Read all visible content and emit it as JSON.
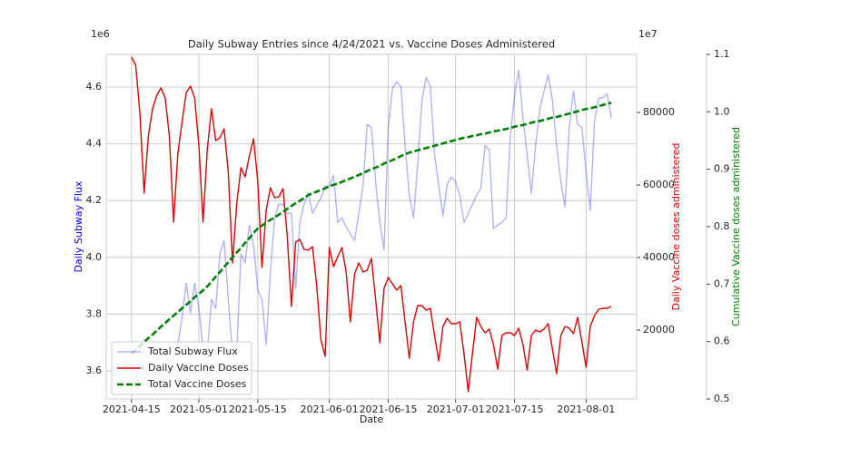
{
  "chart_data": {
    "type": "line",
    "title": "Daily Subway Entries since 4/24/2021 vs. Vaccine Doses Administered",
    "x_label": "Date",
    "y_label": "Daily Subway Flux",
    "y2_label": "Daily Vaccine doses administered",
    "y3_label": "Cumulative Vaccine doses administered",
    "y_offset_label": "1e6",
    "y3_offset_label": "1e7",
    "x": [
      "2021-04-15",
      "2021-04-16",
      "2021-04-17",
      "2021-04-18",
      "2021-04-19",
      "2021-04-20",
      "2021-04-21",
      "2021-04-22",
      "2021-04-23",
      "2021-04-24",
      "2021-04-25",
      "2021-04-26",
      "2021-04-27",
      "2021-04-28",
      "2021-04-29",
      "2021-04-30",
      "2021-05-01",
      "2021-05-02",
      "2021-05-03",
      "2021-05-04",
      "2021-05-05",
      "2021-05-06",
      "2021-05-07",
      "2021-05-08",
      "2021-05-09",
      "2021-05-10",
      "2021-05-11",
      "2021-05-12",
      "2021-05-13",
      "2021-05-14",
      "2021-05-15",
      "2021-05-16",
      "2021-05-17",
      "2021-05-18",
      "2021-05-19",
      "2021-05-20",
      "2021-05-21",
      "2021-05-22",
      "2021-05-23",
      "2021-05-24",
      "2021-05-25",
      "2021-05-26",
      "2021-05-27",
      "2021-05-28",
      "2021-05-29",
      "2021-05-30",
      "2021-05-31",
      "2021-06-01",
      "2021-06-02",
      "2021-06-03",
      "2021-06-04",
      "2021-06-05",
      "2021-06-06",
      "2021-06-07",
      "2021-06-08",
      "2021-06-09",
      "2021-06-10",
      "2021-06-11",
      "2021-06-12",
      "2021-06-13",
      "2021-06-14",
      "2021-06-15",
      "2021-06-16",
      "2021-06-17",
      "2021-06-18",
      "2021-06-19",
      "2021-06-20",
      "2021-06-21",
      "2021-06-22",
      "2021-06-23",
      "2021-06-24",
      "2021-06-25",
      "2021-06-26",
      "2021-06-27",
      "2021-06-28",
      "2021-06-29",
      "2021-06-30",
      "2021-07-01",
      "2021-07-02",
      "2021-07-03",
      "2021-07-04",
      "2021-07-05",
      "2021-07-06",
      "2021-07-07",
      "2021-07-08",
      "2021-07-09",
      "2021-07-10",
      "2021-07-11",
      "2021-07-12",
      "2021-07-13",
      "2021-07-14",
      "2021-07-15",
      "2021-07-16",
      "2021-07-17",
      "2021-07-18",
      "2021-07-19",
      "2021-07-20",
      "2021-07-21",
      "2021-07-22",
      "2021-07-23",
      "2021-07-24",
      "2021-07-25",
      "2021-07-26",
      "2021-07-27",
      "2021-07-28",
      "2021-07-29",
      "2021-07-30",
      "2021-07-31",
      "2021-08-01",
      "2021-08-02",
      "2021-08-03",
      "2021-08-04",
      "2021-08-05",
      "2021-08-06",
      "2021-08-07"
    ],
    "xlim": [
      "2021-04-09",
      "2021-08-13"
    ],
    "xticks": [
      "2021-04-15",
      "2021-05-01",
      "2021-05-15",
      "2021-06-01",
      "2021-06-15",
      "2021-07-01",
      "2021-07-15",
      "2021-08-01"
    ],
    "ylim": [
      3.501,
      4.715
    ],
    "yticks": [
      3.6,
      3.8,
      {
        "value": 4,
        "label": "4.0"
      },
      4.2,
      4.4,
      4.6
    ],
    "y2lim": [
      1000,
      96000
    ],
    "y2ticks": [
      20000,
      40000,
      60000,
      80000
    ],
    "y3lim": [
      0.5,
      1.1
    ],
    "y3ticks": [
      0.5,
      0.6,
      0.7,
      0.8,
      0.9,
      {
        "value": 1,
        "label": "1.0"
      },
      1.1
    ],
    "grid": true,
    "legend": "lower left",
    "series": [
      {
        "name": "Total Subway Flux",
        "color": "#0000ff",
        "opacity": 0.3,
        "axis": "y",
        "values": [
          3.654,
          3.677,
          3.693,
          3.661,
          3.645,
          3.629,
          3.645,
          3.677,
          3.661,
          3.629,
          3.645,
          3.693,
          3.788,
          3.909,
          3.804,
          3.909,
          3.82,
          3.677,
          3.661,
          3.852,
          3.82,
          4.012,
          4.059,
          3.852,
          3.661,
          3.661,
          4.012,
          3.98,
          4.114,
          4.043,
          3.884,
          3.852,
          3.693,
          3.948,
          4.139,
          4.187,
          4.187,
          4.155,
          4.155,
          3.89,
          4.123,
          4.187,
          4.228,
          4.155,
          4.184,
          4.209,
          4.251,
          4.251,
          4.289,
          4.123,
          4.139,
          4.107,
          4.082,
          4.059,
          4.155,
          4.251,
          4.468,
          4.458,
          4.267,
          4.123,
          4.027,
          4.458,
          4.595,
          4.618,
          4.602,
          4.394,
          4.219,
          4.139,
          4.331,
          4.554,
          4.634,
          4.602,
          4.362,
          4.251,
          4.145,
          4.257,
          4.283,
          4.267,
          4.219,
          4.123,
          4.155,
          4.187,
          4.219,
          4.244,
          4.394,
          4.378,
          4.101,
          4.114,
          4.123,
          4.139,
          4.426,
          4.57,
          4.659,
          4.49,
          4.362,
          4.225,
          4.394,
          4.522,
          4.586,
          4.643,
          4.554,
          4.394,
          4.267,
          4.177,
          4.458,
          4.586,
          4.468,
          4.458,
          4.299,
          4.165,
          4.48,
          4.56,
          4.563,
          4.576,
          4.49
        ]
      },
      {
        "name": "Daily Vaccine Doses",
        "color": "#e00000",
        "axis": "y2",
        "values": [
          95250,
          93000,
          79750,
          57750,
          73500,
          81000,
          84750,
          86750,
          84000,
          73500,
          49750,
          68500,
          77250,
          85500,
          87250,
          84000,
          71000,
          49750,
          69750,
          81000,
          72250,
          73000,
          75500,
          63500,
          38500,
          54750,
          64750,
          62250,
          68000,
          72750,
          61000,
          37250,
          53000,
          59250,
          56500,
          56750,
          59000,
          46000,
          26500,
          44250,
          45000,
          42250,
          42000,
          43000,
          32250,
          17250,
          12750,
          42750,
          37500,
          40250,
          42750,
          36000,
          22250,
          35500,
          38500,
          36000,
          36500,
          39750,
          28500,
          16500,
          31500,
          34500,
          32750,
          31000,
          32250,
          22250,
          12250,
          22250,
          26750,
          26750,
          25500,
          26000,
          18500,
          11500,
          21000,
          23250,
          21750,
          21750,
          22250,
          13500,
          3000,
          13500,
          23500,
          21000,
          19250,
          20250,
          16000,
          9250,
          18500,
          19250,
          19250,
          18500,
          20500,
          16000,
          9000,
          18500,
          20000,
          19500,
          20250,
          21750,
          14750,
          8000,
          18500,
          21000,
          20500,
          19000,
          23500,
          16750,
          9750,
          21000,
          24000,
          25750,
          26000,
          26000,
          26500
        ]
      },
      {
        "name": "Total Vaccine Doses",
        "color": "#008000",
        "dashed": true,
        "axis": "y3",
        "values": [
          0.579,
          0.586,
          0.592,
          0.599,
          0.606,
          0.612,
          0.619,
          0.626,
          0.632,
          0.639,
          0.645,
          0.651,
          0.658,
          0.664,
          0.67,
          0.677,
          0.683,
          0.689,
          0.696,
          0.704,
          0.713,
          0.721,
          0.73,
          0.738,
          0.747,
          0.755,
          0.763,
          0.772,
          0.78,
          0.789,
          0.797,
          0.802,
          0.807,
          0.812,
          0.816,
          0.821,
          0.826,
          0.831,
          0.836,
          0.841,
          0.845,
          0.85,
          0.855,
          0.858,
          0.861,
          0.864,
          0.867,
          0.87,
          0.873,
          0.875,
          0.878,
          0.881,
          0.884,
          0.887,
          0.89,
          0.893,
          0.897,
          0.9,
          0.903,
          0.906,
          0.91,
          0.913,
          0.916,
          0.919,
          0.923,
          0.926,
          0.929,
          0.931,
          0.933,
          0.935,
          0.937,
          0.939,
          0.941,
          0.943,
          0.945,
          0.947,
          0.949,
          0.951,
          0.953,
          0.955,
          0.956,
          0.958,
          0.959,
          0.961,
          0.962,
          0.964,
          0.966,
          0.967,
          0.969,
          0.97,
          0.972,
          0.974,
          0.976,
          0.977,
          0.979,
          0.981,
          0.983,
          0.984,
          0.986,
          0.988,
          0.99,
          0.991,
          0.993,
          0.995,
          0.997,
          0.999,
          1.001,
          1.003,
          1.005,
          1.006,
          1.008,
          1.01,
          1.012,
          1.014,
          1.016
        ]
      }
    ]
  }
}
